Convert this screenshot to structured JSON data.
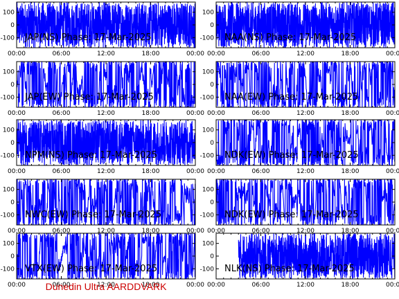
{
  "footer_label": "Dunedin Ultra AARDDVARK",
  "colors": {
    "trace": "#0000ff",
    "axes": "#000000",
    "footer": "#cc0000",
    "background": "#ffffff"
  },
  "chart_data": [
    {
      "type": "line",
      "title": "JAP(NS) Phase: 17-Mar-2025",
      "ylim": [
        -180,
        180
      ],
      "yticks": [
        100,
        0,
        -100
      ],
      "xlim": [
        0,
        24
      ],
      "x_tick_labels": [
        "00:00",
        "06:00",
        "12:00",
        "18:00",
        "00:00"
      ],
      "series": [
        {
          "samples": [
            {
              "start": 0,
              "end": 24,
              "density": "solid"
            }
          ]
        }
      ]
    },
    {
      "type": "line",
      "title": "NAA(NS) Phase: 17-Mar-2025",
      "ylim": [
        -180,
        180
      ],
      "yticks": [
        100,
        0,
        -100
      ],
      "xlim": [
        0,
        24
      ],
      "x_tick_labels": [
        "00:00",
        "06:00",
        "12:00",
        "18:00",
        "00:00"
      ],
      "series": [
        {
          "samples": [
            {
              "start": 0,
              "end": 24,
              "density": "solid"
            }
          ]
        }
      ]
    },
    {
      "type": "line",
      "title": "JAP(EW) Phase: 17-Mar-2025",
      "ylim": [
        -180,
        180
      ],
      "yticks": [
        100,
        0,
        -100
      ],
      "xlim": [
        0,
        24
      ],
      "x_tick_labels": [
        "00:00",
        "06:00",
        "12:00",
        "18:00",
        "00:00"
      ],
      "series": [
        {
          "samples": [
            {
              "start": 0,
              "end": 24,
              "density": "wander"
            }
          ]
        }
      ]
    },
    {
      "type": "line",
      "title": "NAA(EW) Phase: 17-Mar-2025",
      "ylim": [
        -180,
        180
      ],
      "yticks": [
        100,
        0,
        -100
      ],
      "xlim": [
        0,
        24
      ],
      "x_tick_labels": [
        "00:00",
        "06:00",
        "12:00",
        "18:00",
        "00:00"
      ],
      "series": [
        {
          "samples": [
            {
              "start": 0,
              "end": 24,
              "density": "wander"
            }
          ]
        }
      ]
    },
    {
      "type": "line",
      "title": "NPM(NS) Phase: 17-Mar-2025",
      "ylim": [
        -180,
        180
      ],
      "yticks": [
        100,
        0,
        -100
      ],
      "xlim": [
        0,
        24
      ],
      "x_tick_labels": [
        "00:00",
        "06:00",
        "12:00",
        "18:00",
        "00:00"
      ],
      "series": [
        {
          "samples": [
            {
              "start": 0,
              "end": 24,
              "density": "solid"
            }
          ]
        }
      ]
    },
    {
      "type": "line",
      "title": "NDK(EW) Phase: 17-Mar-2025",
      "ylim": [
        -180,
        180
      ],
      "yticks": [
        100,
        0,
        -100
      ],
      "xlim": [
        0,
        24
      ],
      "x_tick_labels": [
        "00:00",
        "06:00",
        "12:00",
        "18:00",
        "00:00"
      ],
      "series": [
        {
          "samples": [
            {
              "start": 0,
              "end": 24,
              "density": "wander"
            }
          ]
        }
      ]
    },
    {
      "type": "line",
      "title": "NWC(EW) Phase: 17-Mar-2025",
      "ylim": [
        -180,
        180
      ],
      "yticks": [
        100,
        0,
        -100
      ],
      "xlim": [
        0,
        24
      ],
      "x_tick_labels": [
        "00:00",
        "06:00",
        "12:00",
        "18:00",
        "00:00"
      ],
      "series": [
        {
          "samples": [
            {
              "start": 0,
              "end": 24,
              "density": "wander"
            }
          ]
        }
      ]
    },
    {
      "type": "line",
      "title": "NDK(EW) Phase: 17-Mar-2025",
      "ylim": [
        -180,
        180
      ],
      "yticks": [
        100,
        0,
        -100
      ],
      "xlim": [
        0,
        24
      ],
      "x_tick_labels": [
        "00:00",
        "06:00",
        "12:00",
        "18:00",
        "00:00"
      ],
      "series": [
        {
          "samples": [
            {
              "start": 0,
              "end": 24,
              "density": "wander"
            }
          ]
        }
      ]
    },
    {
      "type": "line",
      "title": "VTX(EW) Phase: 17-Mar-2025",
      "ylim": [
        -180,
        180
      ],
      "yticks": [
        100,
        0,
        -100
      ],
      "xlim": [
        0,
        24
      ],
      "x_tick_labels": [
        "00:00",
        "06:00",
        "12:00",
        "18:00",
        "00:00"
      ],
      "series": [
        {
          "samples": [
            {
              "start": 0,
              "end": 24,
              "density": "wander"
            }
          ]
        }
      ]
    },
    {
      "type": "line",
      "title": "NLK(NS) Phase: 17-Mar-2025",
      "ylim": [
        -180,
        180
      ],
      "yticks": [
        100,
        0,
        -100
      ],
      "xlim": [
        0,
        24
      ],
      "x_tick_labels": [
        "00:00",
        "06:00",
        "12:00",
        "18:00",
        "00:00"
      ],
      "series": [
        {
          "samples": [
            {
              "start": 0,
              "end": 3,
              "density": "empty"
            },
            {
              "start": 3,
              "end": 24,
              "density": "solid"
            }
          ]
        }
      ]
    }
  ]
}
